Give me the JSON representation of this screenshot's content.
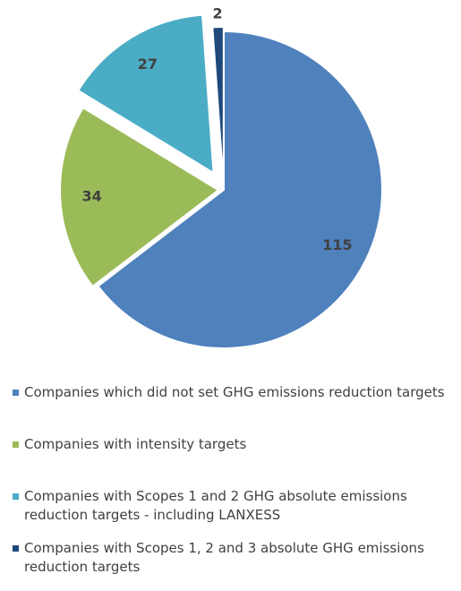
{
  "chart_data": {
    "type": "pie",
    "categories": [
      "Companies which did not set GHG emissions reduction targets",
      "Companies with intensity targets",
      "Companies with Scopes 1 and 2 GHG absolute emissions reduction targets - including LANXESS",
      "Companies with Scopes 1, 2 and 3 absolute GHG emissions reduction targets"
    ],
    "values": [
      115,
      34,
      27,
      2
    ],
    "colors": [
      "#4f81bd",
      "#9bbb59",
      "#4bacc6",
      "#1f497d"
    ],
    "legend": "bottom"
  }
}
